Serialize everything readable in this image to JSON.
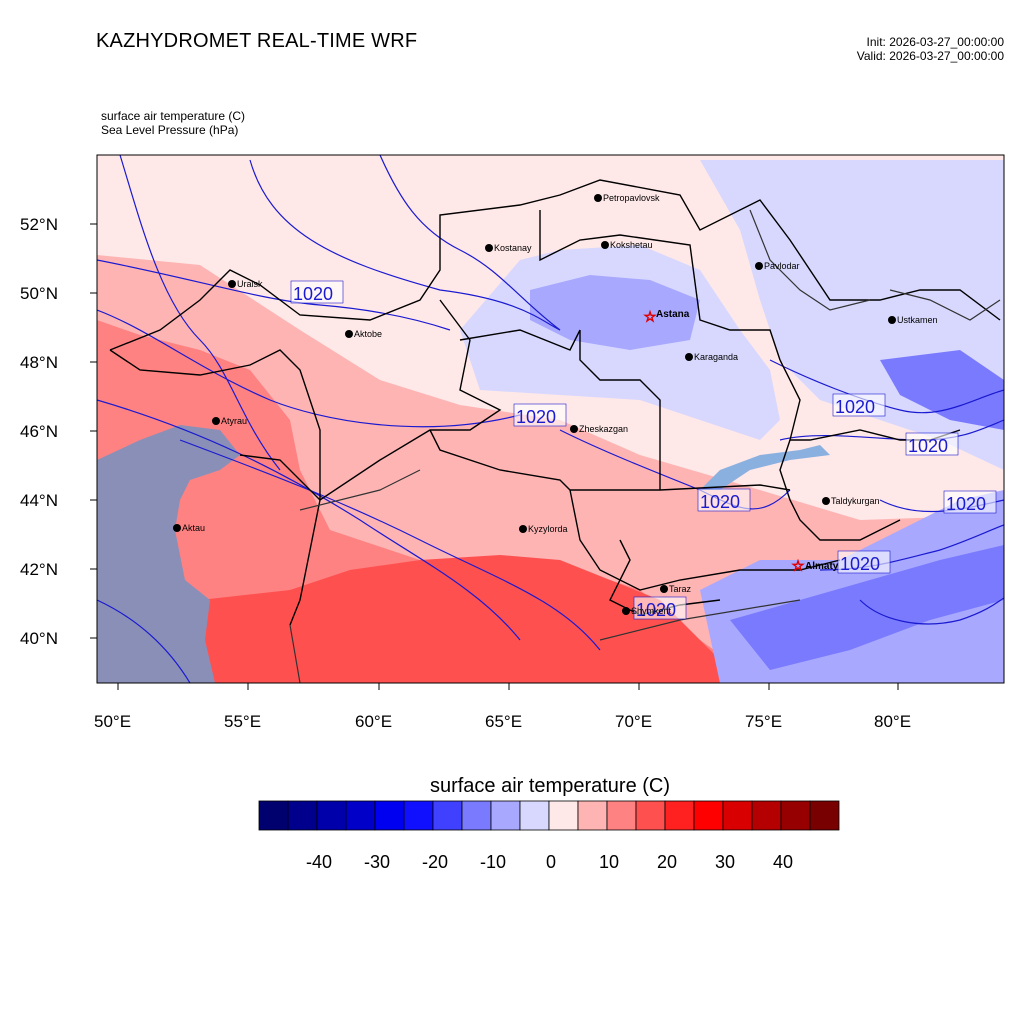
{
  "header": {
    "title": "KAZHYDROMET REAL-TIME WRF",
    "init": "Init: 2026-03-27_00:00:00",
    "valid": "Valid: 2026-03-27_00:00:00",
    "field1": "surface air temperature   (C)",
    "field2": "Sea Level Pressure   (hPa)"
  },
  "axes": {
    "lat_labels": [
      "52°N",
      "50°N",
      "48°N",
      "46°N",
      "44°N",
      "42°N",
      "40°N"
    ],
    "lon_labels": [
      "50°E",
      "55°E",
      "60°E",
      "65°E",
      "70°E",
      "75°E",
      "80°E"
    ]
  },
  "cities": [
    {
      "name": "Petropavlovsk",
      "capital": false
    },
    {
      "name": "Kostanay",
      "capital": false
    },
    {
      "name": "Kokshetau",
      "capital": false
    },
    {
      "name": "Pavlodar",
      "capital": false
    },
    {
      "name": "Uralsk",
      "capital": false
    },
    {
      "name": "Aktobe",
      "capital": false
    },
    {
      "name": "Astana",
      "capital": true
    },
    {
      "name": "Ustkamen",
      "capital": false
    },
    {
      "name": "Karaganda",
      "capital": false
    },
    {
      "name": "Atyrau",
      "capital": false
    },
    {
      "name": "Zheskazgan",
      "capital": false
    },
    {
      "name": "Taldykurgan",
      "capital": false
    },
    {
      "name": "Aktau",
      "capital": false
    },
    {
      "name": "Kyzylorda",
      "capital": false
    },
    {
      "name": "Almaty",
      "capital": true
    },
    {
      "name": "Taraz",
      "capital": false
    },
    {
      "name": "Shymkent",
      "capital": false
    }
  ],
  "pressure_labels": [
    "1020",
    "1020",
    "1020",
    "1020",
    "1020",
    "1020",
    "1020",
    "1020"
  ],
  "colorbar": {
    "title": "surface air temperature  (C)",
    "ticks": [
      "-40",
      "-30",
      "-20",
      "-10",
      "0",
      "10",
      "20",
      "30",
      "40"
    ],
    "colors": [
      "#00006e",
      "#00008c",
      "#0000aa",
      "#0000c8",
      "#0000f0",
      "#1010ff",
      "#4040ff",
      "#7a7aff",
      "#a8a8ff",
      "#d8d8ff",
      "#ffe8e8",
      "#ffb4b4",
      "#ff8282",
      "#ff5050",
      "#ff2020",
      "#ff0000",
      "#d80000",
      "#b40000",
      "#960000",
      "#780000"
    ]
  },
  "colors": {
    "water": "#8a8fb8",
    "pressure_line": "#1a1ad0",
    "border": "#000000",
    "capital_star": "#e00000"
  }
}
